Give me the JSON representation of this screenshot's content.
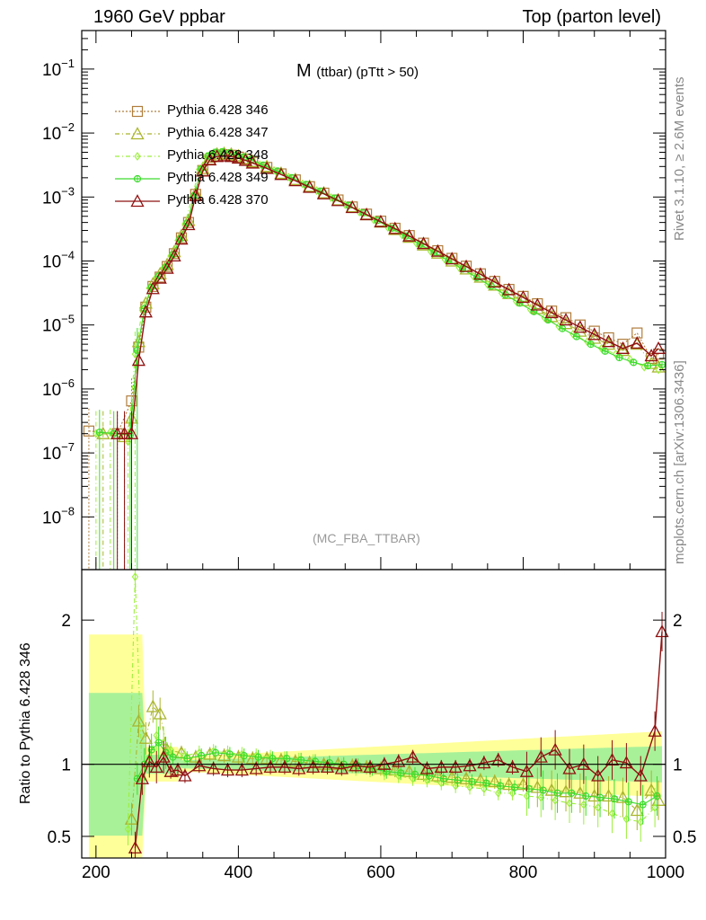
{
  "header": {
    "left": "1960 GeV ppbar",
    "right": "Top (parton level)"
  },
  "plot_title": {
    "main": "M",
    "sub": "(ttbar) (pTtt > 50)"
  },
  "plot_tag": "(MC_FBA_TTBAR)",
  "side_labels": {
    "rivet": "Rivet 3.1.10, ≥ 2.6M events",
    "mcplots": "mcplots.cern.ch [arXiv:1306.3436]"
  },
  "ratio_ylabel": "Ratio to Pythia 6.428 346",
  "colors": {
    "s346": "#b07d3c",
    "s347": "#a9b52d",
    "s348": "#9cef3c",
    "s349": "#3ddc2d",
    "s370": "#8f1010",
    "band_yellow": "#ffff99",
    "band_green": "#99ee99"
  },
  "chart_data": [
    {
      "type": "line",
      "xlabel": "",
      "ylabel": "",
      "xlim": [
        180,
        1000
      ],
      "ylim": [
        1.5e-09,
        0.4
      ],
      "log_y": true,
      "y_ticks": [
        "10^{-8}",
        "10^{-7}",
        "10^{-6}",
        "10^{-5}",
        "10^{-4}",
        "10^{-3}",
        "10^{-2}",
        "10^{-1}"
      ],
      "legend_position": "top-left",
      "series": [
        {
          "name": "Pythia 6.428 346",
          "style": "dotted",
          "marker": "square",
          "x": [
            190,
            230,
            250,
            260,
            270,
            280,
            290,
            300,
            310,
            320,
            330,
            340,
            350,
            360,
            370,
            380,
            390,
            400,
            410,
            420,
            440,
            460,
            480,
            500,
            520,
            540,
            560,
            580,
            600,
            620,
            640,
            660,
            680,
            700,
            720,
            740,
            760,
            780,
            800,
            820,
            840,
            860,
            880,
            900,
            920,
            940,
            960,
            980,
            990
          ],
          "y": [
            2.2e-07,
            2e-07,
            6.5e-07,
            4.5e-06,
            1.9e-05,
            4e-05,
            5.6e-05,
            8.2e-05,
            0.00013,
            0.00023,
            0.0004,
            0.0011,
            0.0026,
            0.0039,
            0.0044,
            0.0046,
            0.0045,
            0.0042,
            0.0039,
            0.0035,
            0.0029,
            0.0023,
            0.00185,
            0.00145,
            0.00115,
            0.0009,
            0.0007,
            0.00054,
            0.00042,
            0.000325,
            0.00025,
            0.00019,
            0.000145,
            0.00011,
            8.3e-05,
            6.3e-05,
            4.8e-05,
            3.6e-05,
            2.8e-05,
            2.15e-05,
            1.65e-05,
            1.3e-05,
            1e-05,
            8e-06,
            6.3e-06,
            5e-06,
            7.5e-06,
            3e-06,
            3.5e-06
          ]
        },
        {
          "name": "Pythia 6.428 347",
          "style": "dashdot",
          "marker": "triangle",
          "x": [
            210,
            240,
            250,
            260,
            270,
            280,
            290,
            300,
            310,
            320,
            330,
            340,
            350,
            360,
            370,
            380,
            390,
            400,
            410,
            420,
            440,
            460,
            480,
            500,
            520,
            540,
            560,
            580,
            600,
            620,
            640,
            660,
            680,
            700,
            720,
            740,
            760,
            780,
            800,
            820,
            840,
            860,
            880,
            900,
            920,
            940,
            960,
            980,
            990
          ],
          "y": [
            2e-07,
            1.8e-07,
            3.5e-07,
            5.5e-06,
            2.2e-05,
            4.4e-05,
            6.3e-05,
            8.8e-05,
            0.00014,
            0.00025,
            0.00043,
            0.00115,
            0.0028,
            0.0042,
            0.0047,
            0.0048,
            0.0047,
            0.0044,
            0.004,
            0.0036,
            0.003,
            0.00235,
            0.00188,
            0.00147,
            0.00116,
            0.0009,
            0.0007,
            0.00053,
            0.000405,
            0.00031,
            0.000235,
            0.000178,
            0.000133,
            0.0001,
            7.5e-05,
            5.6e-05,
            4.2e-05,
            3.1e-05,
            2.4e-05,
            1.8e-05,
            1.35e-05,
            1.05e-05,
            8e-06,
            6.2e-06,
            5e-06,
            4e-06,
            5e-06,
            2.5e-06,
            2.2e-06
          ]
        },
        {
          "name": "Pythia 6.428 348",
          "style": "dashdot",
          "marker": "diamond",
          "x": [
            200,
            220,
            245,
            255,
            265,
            275,
            285,
            295,
            305,
            315,
            325,
            335,
            345,
            355,
            365,
            375,
            385,
            395,
            405,
            415,
            430,
            450,
            470,
            490,
            510,
            530,
            550,
            570,
            590,
            610,
            630,
            650,
            670,
            690,
            710,
            730,
            750,
            770,
            790,
            810,
            830,
            850,
            870,
            890,
            910,
            930,
            950,
            970,
            990
          ],
          "y": [
            2e-07,
            2.1e-07,
            1.5e-07,
            3.5e-06,
            1.7e-05,
            3.8e-05,
            5.6e-05,
            7.8e-05,
            0.00012,
            0.00021,
            0.00038,
            0.001,
            0.0027,
            0.0043,
            0.0049,
            0.005,
            0.0048,
            0.0045,
            0.0041,
            0.0038,
            0.0032,
            0.0026,
            0.00205,
            0.0016,
            0.00126,
            0.00098,
            0.00076,
            0.00058,
            0.00044,
            0.000335,
            0.000255,
            0.00019,
            0.000142,
            0.000106,
            7.9e-05,
            5.8e-05,
            4.3e-05,
            3.15e-05,
            2.35e-05,
            1.75e-05,
            1.3e-05,
            9.5e-06,
            7.2e-06,
            5.5e-06,
            4.3e-06,
            3.5e-06,
            2.9e-06,
            2.2e-06,
            2e-06
          ]
        },
        {
          "name": "Pythia 6.428 349",
          "style": "solid",
          "marker": "circle-cross",
          "x": [
            205,
            225,
            248,
            258,
            268,
            278,
            288,
            298,
            308,
            318,
            328,
            338,
            348,
            358,
            368,
            378,
            388,
            398,
            408,
            418,
            435,
            455,
            475,
            495,
            515,
            535,
            555,
            575,
            595,
            615,
            635,
            655,
            675,
            695,
            715,
            735,
            755,
            775,
            795,
            815,
            835,
            855,
            875,
            895,
            915,
            935,
            955,
            975,
            995
          ],
          "y": [
            2.1e-07,
            2e-07,
            1.9e-07,
            4e-06,
            1.8e-05,
            3.9e-05,
            5.8e-05,
            8e-05,
            0.000125,
            0.00022,
            0.00039,
            0.00105,
            0.00275,
            0.0044,
            0.005,
            0.0051,
            0.0049,
            0.0046,
            0.0042,
            0.00385,
            0.00315,
            0.00255,
            0.002,
            0.00157,
            0.00123,
            0.00096,
            0.00074,
            0.000565,
            0.00043,
            0.000325,
            0.000245,
            0.000183,
            0.000136,
            0.000101,
            7.5e-05,
            5.5e-05,
            4.05e-05,
            2.95e-05,
            2.2e-05,
            1.62e-05,
            1.2e-05,
            8.8e-06,
            6.6e-06,
            5e-06,
            3.9e-06,
            3.1e-06,
            2.6e-06,
            2.3e-06,
            2.4e-06
          ]
        },
        {
          "name": "Pythia 6.428 370",
          "style": "solid",
          "marker": "triangle",
          "x": [
            230,
            240,
            250,
            260,
            270,
            280,
            290,
            300,
            310,
            320,
            330,
            340,
            350,
            360,
            370,
            380,
            390,
            400,
            410,
            420,
            440,
            460,
            480,
            500,
            520,
            540,
            560,
            580,
            600,
            620,
            640,
            660,
            680,
            700,
            720,
            740,
            760,
            780,
            800,
            820,
            840,
            860,
            880,
            900,
            920,
            940,
            960,
            980,
            990
          ],
          "y": [
            2e-07,
            2e-07,
            2e-07,
            2.8e-06,
            1.6e-05,
            3.7e-05,
            5.4e-05,
            7.7e-05,
            0.00012,
            0.00022,
            0.00037,
            0.00105,
            0.00255,
            0.0038,
            0.0043,
            0.0044,
            0.0043,
            0.00405,
            0.00375,
            0.0034,
            0.0028,
            0.00225,
            0.0018,
            0.00142,
            0.00112,
            0.00088,
            0.000685,
            0.00053,
            0.00041,
            0.00032,
            0.000245,
            0.000187,
            0.000142,
            0.000108,
            8.2e-05,
            6.2e-05,
            4.7e-05,
            3.55e-05,
            2.7e-05,
            2.05e-05,
            1.56e-05,
            1.2e-05,
            9.2e-06,
            7.1e-06,
            5.5e-06,
            4.3e-06,
            5.2e-06,
            3.3e-06,
            4.3e-06
          ]
        }
      ]
    },
    {
      "type": "line",
      "xlabel": "",
      "ylabel": "Ratio to Pythia 6.428 346",
      "xlim": [
        180,
        1000
      ],
      "ylim": [
        0.35,
        2.35
      ],
      "x_ticks": [
        200,
        400,
        600,
        800,
        1000
      ],
      "y_ticks": [
        0.5,
        1,
        2
      ],
      "reference_line": 1,
      "series": [
        {
          "name": "Pythia 6.428 347",
          "x": [
            250,
            260,
            270,
            280,
            290,
            300,
            320,
            340,
            360,
            380,
            400,
            420,
            440,
            460,
            480,
            500,
            520,
            540,
            560,
            580,
            600,
            620,
            640,
            660,
            680,
            700,
            720,
            740,
            760,
            780,
            800,
            820,
            840,
            860,
            880,
            900,
            920,
            940,
            960,
            980,
            990
          ],
          "y": [
            0.62,
            1.3,
            1.18,
            1.4,
            1.35,
            1.1,
            1.08,
            1.05,
            1.07,
            1.06,
            1.05,
            1.04,
            1.04,
            1.03,
            1.02,
            1.01,
            1.0,
            1.0,
            0.99,
            0.98,
            0.97,
            0.96,
            0.95,
            0.93,
            0.92,
            0.91,
            0.9,
            0.89,
            0.88,
            0.86,
            0.86,
            0.84,
            0.82,
            0.81,
            0.8,
            0.78,
            0.78,
            0.77,
            0.68,
            0.82,
            0.75
          ]
        },
        {
          "name": "Pythia 6.428 348",
          "x": [
            245,
            255,
            265,
            275,
            285,
            295,
            305,
            325,
            345,
            365,
            385,
            405,
            425,
            445,
            465,
            485,
            505,
            525,
            545,
            565,
            585,
            605,
            625,
            645,
            665,
            685,
            705,
            725,
            745,
            765,
            785,
            805,
            825,
            845,
            865,
            885,
            905,
            925,
            945,
            965,
            985
          ],
          "y": [
            0.55,
            2.3,
            0.9,
            1.05,
            1.2,
            1.15,
            1.1,
            1.06,
            1.08,
            1.09,
            1.08,
            1.07,
            1.06,
            1.05,
            1.04,
            1.03,
            1.02,
            1.0,
            0.99,
            0.97,
            0.96,
            0.94,
            0.92,
            0.9,
            0.89,
            0.87,
            0.85,
            0.84,
            0.83,
            0.8,
            0.8,
            0.78,
            0.77,
            0.75,
            0.73,
            0.72,
            0.7,
            0.66,
            0.62,
            0.6,
            0.7
          ]
        },
        {
          "name": "Pythia 6.428 349",
          "x": [
            258,
            268,
            278,
            288,
            298,
            308,
            328,
            348,
            368,
            388,
            408,
            428,
            448,
            468,
            488,
            508,
            528,
            548,
            568,
            588,
            608,
            628,
            648,
            668,
            688,
            708,
            728,
            748,
            768,
            788,
            808,
            828,
            848,
            868,
            888,
            908,
            928,
            948,
            968,
            988
          ],
          "y": [
            0.9,
            1.0,
            1.1,
            1.15,
            1.08,
            1.05,
            1.04,
            1.06,
            1.08,
            1.07,
            1.06,
            1.05,
            1.04,
            1.04,
            1.03,
            1.02,
            1.01,
            1.0,
            0.99,
            0.97,
            0.95,
            0.94,
            0.93,
            0.92,
            0.9,
            0.89,
            0.88,
            0.87,
            0.85,
            0.84,
            0.83,
            0.82,
            0.8,
            0.8,
            0.78,
            0.77,
            0.76,
            0.74,
            0.72,
            0.78
          ]
        },
        {
          "name": "Pythia 6.428 370",
          "x": [
            255,
            265,
            275,
            285,
            295,
            305,
            315,
            325,
            345,
            365,
            385,
            405,
            425,
            445,
            465,
            485,
            505,
            525,
            545,
            565,
            585,
            605,
            625,
            645,
            665,
            685,
            705,
            725,
            745,
            765,
            785,
            805,
            825,
            845,
            865,
            885,
            905,
            925,
            945,
            965,
            985,
            995
          ],
          "y": [
            0.42,
            0.9,
            1.02,
            0.98,
            1.05,
            0.95,
            0.96,
            0.92,
            0.99,
            0.97,
            0.96,
            0.96,
            0.97,
            0.98,
            0.98,
            0.97,
            0.98,
            0.98,
            0.97,
            0.99,
            0.98,
            1.0,
            1.02,
            1.05,
            0.97,
            0.98,
            0.98,
            0.99,
            1.01,
            1.03,
            0.98,
            0.95,
            1.05,
            1.1,
            0.97,
            1.0,
            0.92,
            1.03,
            1.01,
            0.92,
            1.23,
            1.92
          ]
        }
      ]
    }
  ]
}
